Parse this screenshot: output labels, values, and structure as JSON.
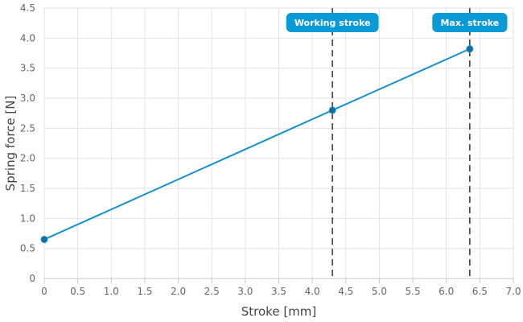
{
  "chart_data": {
    "type": "line",
    "xlabel": "Stroke [mm]",
    "ylabel": "Spring force [N]",
    "xlim": [
      0,
      7.0
    ],
    "ylim": [
      0,
      4.5
    ],
    "x_ticks": [
      "0",
      "0.5",
      "1.0",
      "1.5",
      "2.0",
      "2.5",
      "3.0",
      "3.5",
      "4.0",
      "4.5",
      "5.0",
      "5.5",
      "6.0",
      "6.5",
      "7.0"
    ],
    "y_ticks": [
      "0",
      "0.5",
      "1.0",
      "1.5",
      "2.0",
      "2.5",
      "3.0",
      "3.5",
      "4.0",
      "4.5"
    ],
    "grid": true,
    "series": [
      {
        "points": [
          {
            "x": 0,
            "y": 0.65
          },
          {
            "x": 4.3,
            "y": 2.8
          },
          {
            "x": 6.35,
            "y": 3.82
          }
        ]
      }
    ],
    "markers": [
      {
        "label": "Working stroke",
        "x": 4.3
      },
      {
        "label": "Max. stroke",
        "x": 6.35
      }
    ],
    "colors": {
      "line": "#1591d1",
      "point": "#0f6f9c",
      "marker_label": "#0a9ad8",
      "marker_line": "#333333"
    }
  }
}
